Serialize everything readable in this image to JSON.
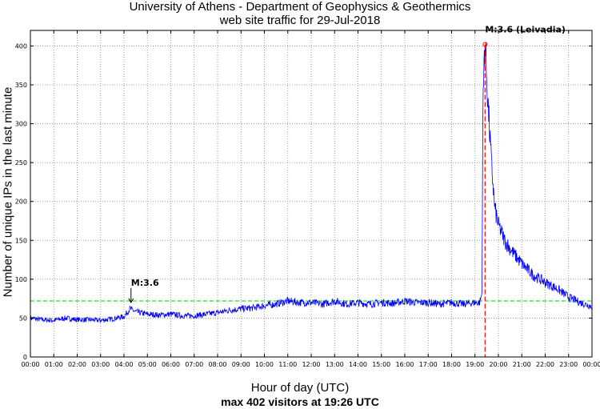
{
  "chart_data": {
    "type": "line",
    "title": "University of Athens - Department of Geophysics & Geothermics",
    "subtitle": "web site traffic for 29-Jul-2018",
    "xlabel": "Hour of day (UTC)",
    "ylabel": "Number of unique IPs in the last minute",
    "footer": "max 402 visitors at 19:26 UTC",
    "xlim": [
      0,
      24
    ],
    "ylim": [
      0,
      420
    ],
    "x_ticks": [
      "00:00",
      "01:00",
      "02:00",
      "03:00",
      "04:00",
      "05:00",
      "06:00",
      "07:00",
      "08:00",
      "09:00",
      "10:00",
      "11:00",
      "12:00",
      "13:00",
      "14:00",
      "15:00",
      "16:00",
      "17:00",
      "18:00",
      "19:00",
      "20:00",
      "21:00",
      "22:00",
      "23:00",
      "00:00"
    ],
    "y_ticks": [
      0,
      50,
      100,
      150,
      200,
      250,
      300,
      350,
      400
    ],
    "grid": true,
    "average_line": {
      "value": 72,
      "color": "#00cc00"
    },
    "series": [
      {
        "color": "#0000ff",
        "x": [
          0.0,
          0.5,
          1.0,
          1.5,
          2.0,
          2.5,
          3.0,
          3.5,
          4.0,
          4.25,
          4.5,
          5.0,
          5.5,
          6.0,
          6.5,
          7.0,
          7.5,
          8.0,
          8.5,
          9.0,
          9.5,
          10.0,
          10.5,
          11.0,
          11.5,
          12.0,
          12.5,
          13.0,
          13.5,
          14.0,
          14.5,
          15.0,
          15.5,
          16.0,
          16.5,
          17.0,
          17.5,
          18.0,
          18.5,
          19.0,
          19.2,
          19.3,
          19.33,
          19.4,
          19.43,
          19.55,
          19.7,
          19.85,
          20.0,
          20.3,
          20.6,
          21.0,
          21.5,
          22.0,
          22.5,
          23.0,
          23.5,
          24.0
        ],
        "y": [
          50,
          48,
          47,
          50,
          48,
          48,
          47,
          49,
          52,
          62,
          58,
          55,
          54,
          55,
          53,
          53,
          55,
          57,
          60,
          62,
          63,
          66,
          68,
          72,
          70,
          70,
          68,
          72,
          68,
          70,
          68,
          70,
          69,
          72,
          70,
          70,
          68,
          70,
          68,
          70,
          70,
          82,
          300,
          395,
          402,
          330,
          250,
          190,
          170,
          148,
          135,
          120,
          105,
          96,
          88,
          77,
          70,
          65
        ]
      }
    ],
    "annotations": [
      {
        "text": "M:3.6",
        "x": 4.3,
        "y": 66,
        "style": "arrow"
      },
      {
        "text": "M:3.6 (Leivadia)",
        "x": 19.43,
        "y": 402,
        "style": "dashed-vline",
        "color": "#ff0000"
      }
    ]
  }
}
